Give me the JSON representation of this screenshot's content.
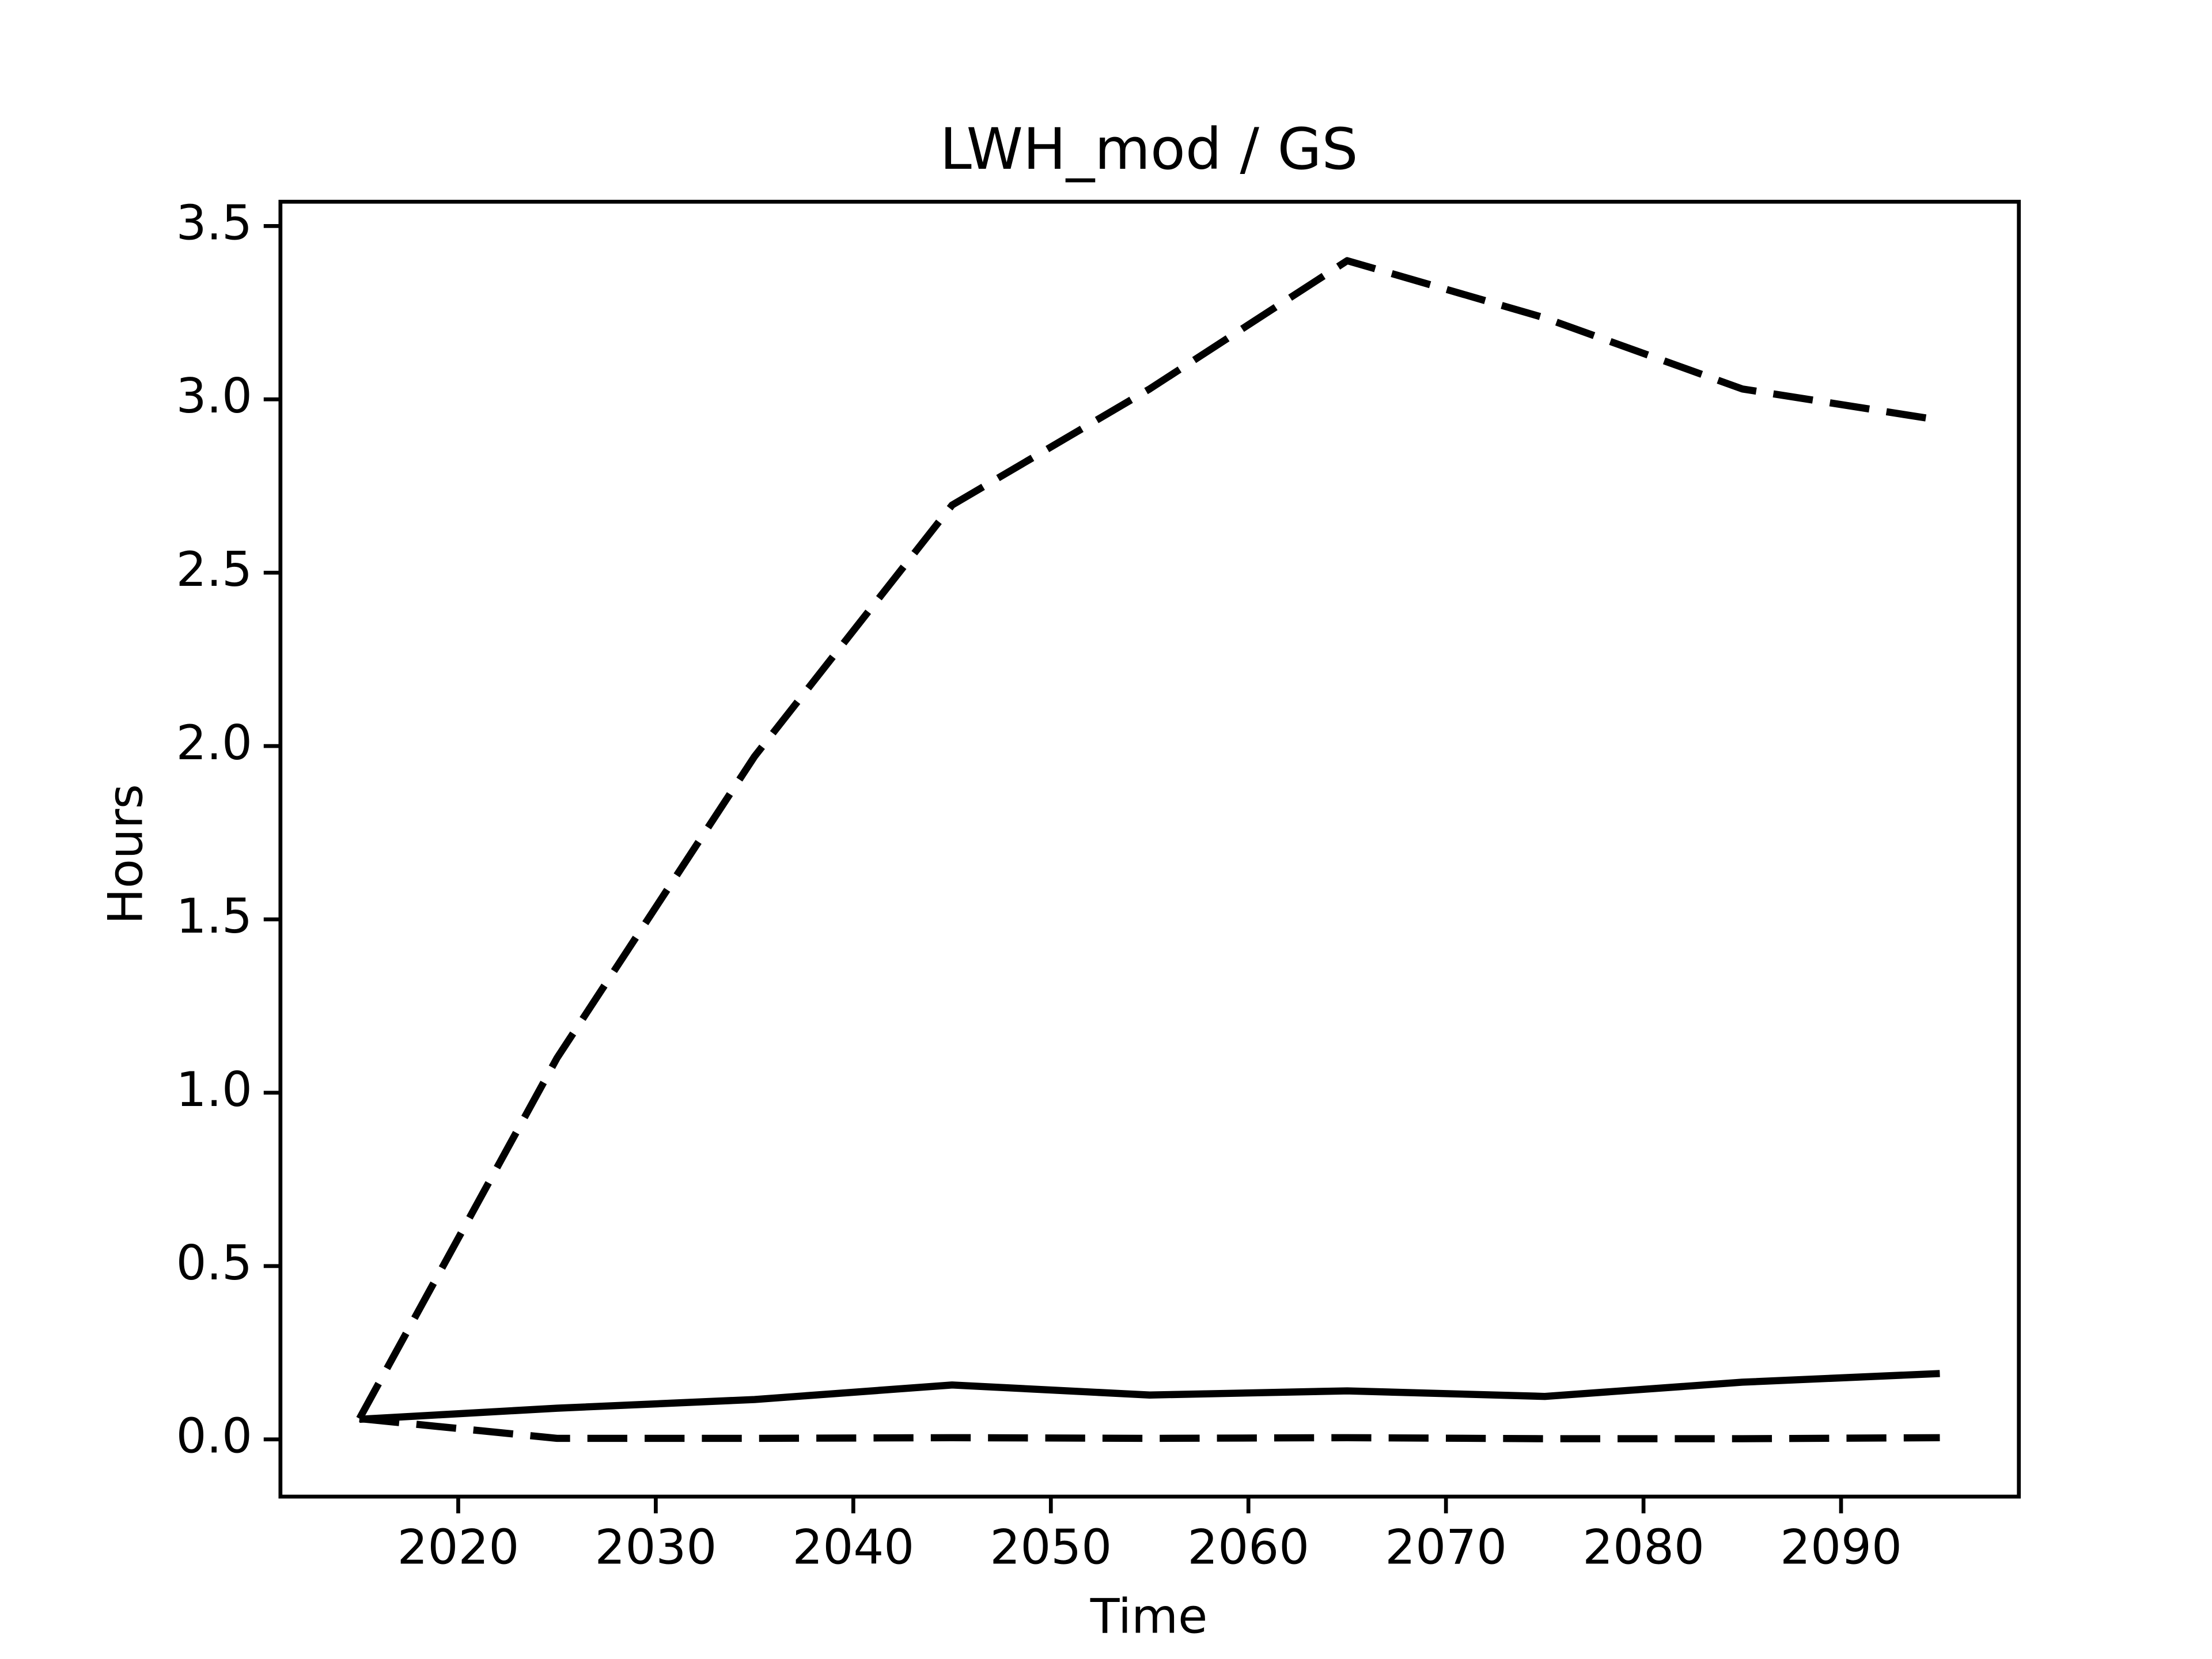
{
  "chart_data": {
    "type": "line",
    "title": "LWH_mod / GS",
    "xlabel": "Time",
    "ylabel": "Hours",
    "x": [
      2015,
      2025,
      2035,
      2045,
      2055,
      2065,
      2075,
      2085,
      2095
    ],
    "series": [
      {
        "color": "#000000",
        "dashed": true,
        "values": [
          0.06,
          1.1,
          1.97,
          2.695,
          3.03,
          3.4,
          3.235,
          3.03,
          2.94
        ]
      },
      {
        "color": "#000000",
        "dashed": false,
        "values": [
          0.058,
          0.09,
          0.115,
          0.157,
          0.128,
          0.14,
          0.124,
          0.165,
          0.19
        ]
      },
      {
        "color": "#000000",
        "dashed": true,
        "values": [
          0.06,
          0.003,
          0.003,
          0.005,
          0.003,
          0.005,
          0.002,
          0.002,
          0.005
        ]
      }
    ],
    "xlim": [
      2011,
      2099
    ],
    "xticks": [
      2020,
      2030,
      2040,
      2050,
      2060,
      2070,
      2080,
      2090
    ],
    "ylim": [
      -0.165,
      3.57
    ],
    "yticks": [
      {
        "value": 0,
        "label": "0.0"
      },
      0.5,
      {
        "value": 1,
        "label": "1.0"
      },
      1.5,
      {
        "value": 2,
        "label": "2.0"
      },
      2.5,
      {
        "value": 3,
        "label": "3.0"
      },
      3.5
    ],
    "grid": false
  }
}
